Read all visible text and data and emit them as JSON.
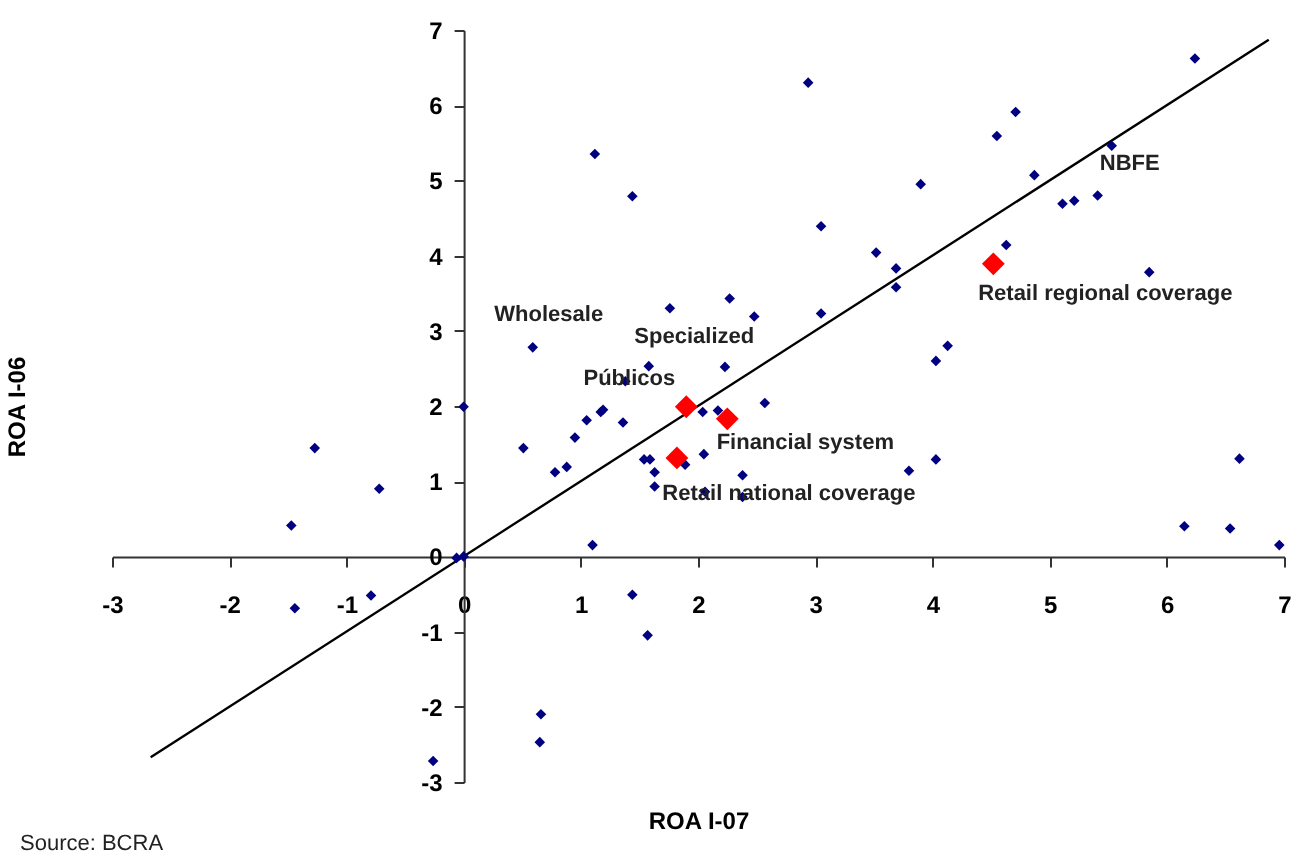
{
  "chart_data": {
    "type": "scatter",
    "xlabel": "ROA I-07",
    "ylabel": "ROA I-06",
    "xlim": [
      -3,
      7
    ],
    "ylim": [
      -3,
      7
    ],
    "xticks": [
      -3,
      -2,
      -1,
      0,
      1,
      2,
      3,
      4,
      5,
      6,
      7
    ],
    "yticks": [
      -3,
      -2,
      -1,
      0,
      1,
      2,
      3,
      4,
      5,
      6,
      7
    ],
    "grid": false,
    "marker": "diamond",
    "annotations": [
      {
        "text": "Wholesale",
        "x": 0.59,
        "y": 2.78
      },
      {
        "text": "Specialized",
        "x": 1.9,
        "y": 1.99
      },
      {
        "text": "Públicos",
        "x": 1.38,
        "y": 2.33
      },
      {
        "text": "NBFE",
        "x": 5.53,
        "y": 5.46
      },
      {
        "text": "Retail regional coverage",
        "x": 4.52,
        "y": 3.89
      },
      {
        "text": "Financial system",
        "x": 2.25,
        "y": 1.83
      },
      {
        "text": "Retail national coverage",
        "x": 1.82,
        "y": 1.31
      },
      "Source: BCRA"
    ],
    "series": [
      {
        "type": "line",
        "color": "#000000",
        "marker": "none",
        "x": [
          -2.67,
          6.87
        ],
        "values": [
          -2.67,
          6.87
        ]
      },
      {
        "color": "#000080",
        "x": [
          1.12,
          1.44,
          1.76,
          0.59,
          1.58,
          1.38,
          2.94,
          6.24,
          4.71,
          4.55,
          5.53,
          4.87,
          3.9,
          5.11,
          5.21,
          5.41,
          3.05,
          4.63,
          3.52,
          3.69,
          3.69,
          5.85,
          2.27,
          2.48,
          3.05,
          4.13,
          4.03,
          2.23,
          0.0,
          0.51,
          -1.27,
          -0.72,
          -1.47,
          -1.44,
          -0.79,
          0.78,
          0.88,
          0.95,
          1.05,
          1.17,
          1.19,
          1.36,
          1.54,
          1.59,
          1.63,
          1.63,
          1.1,
          -0.06,
          0.0,
          1.44,
          1.57,
          0.66,
          0.65,
          -0.26,
          2.04,
          2.17,
          2.57,
          2.05,
          1.89,
          2.38,
          2.06,
          2.38,
          3.8,
          4.03,
          6.62,
          6.15,
          6.54,
          6.96
        ],
        "values": [
          5.35,
          4.79,
          3.3,
          2.78,
          2.53,
          2.33,
          6.3,
          6.62,
          5.91,
          5.59,
          5.46,
          5.07,
          4.95,
          4.69,
          4.73,
          4.8,
          4.39,
          4.14,
          4.04,
          3.83,
          3.58,
          3.78,
          3.43,
          3.19,
          3.23,
          2.8,
          2.6,
          2.52,
          1.99,
          1.44,
          1.44,
          0.9,
          0.41,
          -0.69,
          -0.52,
          1.12,
          1.19,
          1.58,
          1.81,
          1.92,
          1.95,
          1.78,
          1.29,
          1.29,
          1.12,
          0.93,
          0.15,
          -0.02,
          0.0,
          -0.51,
          -1.05,
          -2.1,
          -2.47,
          -2.72,
          1.92,
          1.94,
          2.04,
          1.36,
          1.22,
          1.08,
          0.86,
          0.79,
          1.14,
          1.29,
          1.3,
          0.4,
          0.37,
          0.15
        ]
      },
      {
        "color": "#ff0000",
        "x": [
          1.9,
          2.25,
          1.82,
          4.52
        ],
        "values": [
          1.99,
          1.83,
          1.31,
          3.89
        ]
      }
    ]
  }
}
